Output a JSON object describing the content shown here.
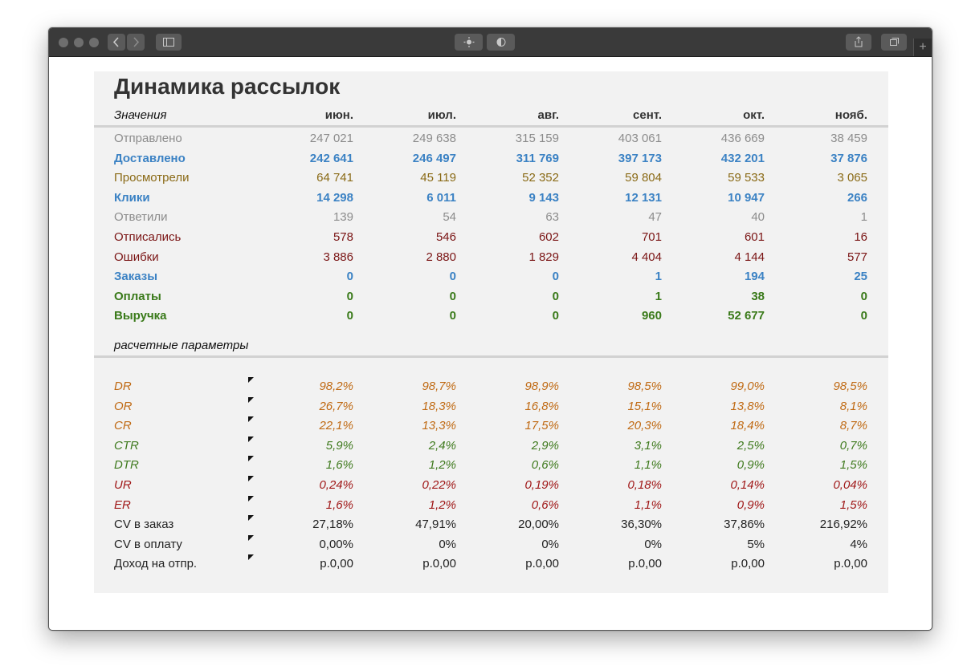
{
  "title": "Динамика рассылок",
  "header": {
    "label": "Значения",
    "months": [
      "июн.",
      "июл.",
      "авг.",
      "сент.",
      "окт.",
      "нояб."
    ]
  },
  "values_rows": [
    {
      "label": "Отправлено",
      "style": "gray",
      "values": [
        "247 021",
        "249 638",
        "315 159",
        "403 061",
        "436 669",
        "38 459"
      ]
    },
    {
      "label": "Доставлено",
      "style": "blue",
      "values": [
        "242 641",
        "246 497",
        "311 769",
        "397 173",
        "432 201",
        "37 876"
      ]
    },
    {
      "label": "Просмотрели",
      "style": "olive",
      "values": [
        "64 741",
        "45 119",
        "52 352",
        "59 804",
        "59 533",
        "3 065"
      ]
    },
    {
      "label": "Клики",
      "style": "blue",
      "values": [
        "14 298",
        "6 011",
        "9 143",
        "12 131",
        "10 947",
        "266"
      ]
    },
    {
      "label": "Ответили",
      "style": "gray",
      "values": [
        "139",
        "54",
        "63",
        "47",
        "40",
        "1"
      ]
    },
    {
      "label": "Отписались",
      "style": "maroon",
      "values": [
        "578",
        "546",
        "602",
        "701",
        "601",
        "16"
      ]
    },
    {
      "label": "Ошибки",
      "style": "maroon",
      "values": [
        "3 886",
        "2 880",
        "1 829",
        "4 404",
        "4 144",
        "577"
      ]
    },
    {
      "label": "Заказы",
      "style": "blue",
      "values": [
        "0",
        "0",
        "0",
        "1",
        "194",
        "25"
      ]
    },
    {
      "label": "Оплаты",
      "style": "green",
      "values": [
        "0",
        "0",
        "0",
        "1",
        "38",
        "0"
      ]
    },
    {
      "label": "Выручка",
      "style": "green",
      "values": [
        "0",
        "0",
        "0",
        "960",
        "52 677",
        "0"
      ]
    }
  ],
  "calc_section_label": "расчетные параметры",
  "calc_rows": [
    {
      "label": "DR",
      "style": "orange",
      "values": [
        "98,2%",
        "98,7%",
        "98,9%",
        "98,5%",
        "99,0%",
        "98,5%"
      ]
    },
    {
      "label": "OR",
      "style": "orange",
      "values": [
        "26,7%",
        "18,3%",
        "16,8%",
        "15,1%",
        "13,8%",
        "8,1%"
      ]
    },
    {
      "label": "CR",
      "style": "orange",
      "values": [
        "22,1%",
        "13,3%",
        "17,5%",
        "20,3%",
        "18,4%",
        "8,7%"
      ]
    },
    {
      "label": "CTR",
      "style": "dgreen",
      "values": [
        "5,9%",
        "2,4%",
        "2,9%",
        "3,1%",
        "2,5%",
        "0,7%"
      ]
    },
    {
      "label": "DTR",
      "style": "dgreen",
      "values": [
        "1,6%",
        "1,2%",
        "0,6%",
        "1,1%",
        "0,9%",
        "1,5%"
      ]
    },
    {
      "label": "UR",
      "style": "red",
      "values": [
        "0,24%",
        "0,22%",
        "0,19%",
        "0,18%",
        "0,14%",
        "0,04%"
      ]
    },
    {
      "label": "ER",
      "style": "red",
      "values": [
        "1,6%",
        "1,2%",
        "0,6%",
        "1,1%",
        "0,9%",
        "1,5%"
      ]
    },
    {
      "label": "CV в заказ",
      "style": "dark",
      "values": [
        "27,18%",
        "47,91%",
        "20,00%",
        "36,30%",
        "37,86%",
        "216,92%"
      ]
    },
    {
      "label": "CV в оплату",
      "style": "dark",
      "values": [
        "0,00%",
        "0%",
        "0%",
        "0%",
        "5%",
        "4%"
      ]
    },
    {
      "label": "Доход на отпр.",
      "style": "dark",
      "values": [
        "р.0,00",
        "р.0,00",
        "р.0,00",
        "р.0,00",
        "р.0,00",
        "р.0,00"
      ]
    }
  ],
  "toolbar": {
    "icons": [
      "back-icon",
      "forward-icon",
      "sidebar-icon",
      "brightness-icon",
      "contrast-icon",
      "share-icon",
      "tabs-icon",
      "new-tab-icon"
    ],
    "new_tab_glyph": "+"
  }
}
